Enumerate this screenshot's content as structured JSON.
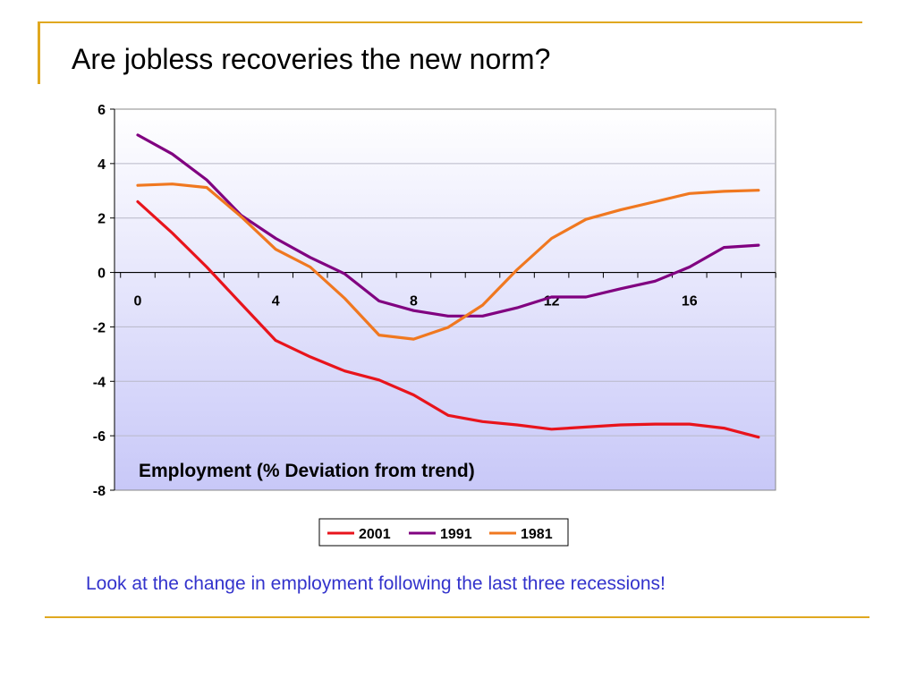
{
  "slide": {
    "title": "Are jobless recoveries the new norm?",
    "caption": "Look at the change in employment following the last three recessions!"
  },
  "colors": {
    "accent_rule": "#e0a820",
    "caption": "#3333cc",
    "plot_top": "#ffffff",
    "plot_bottom": "#c8c8f8"
  },
  "chart_data": {
    "type": "line",
    "title": "Employment (% Deviation from trend)",
    "xlabel": "",
    "ylabel": "",
    "xlim": [
      0,
      18
    ],
    "ylim": [
      -8,
      6
    ],
    "x_ticks": [
      0,
      4,
      8,
      12,
      16
    ],
    "y_ticks": [
      6,
      4,
      2,
      0,
      -2,
      -4,
      -6,
      -8
    ],
    "grid": true,
    "legend_position": "bottom-center",
    "x": [
      0,
      1,
      2,
      3,
      4,
      5,
      6,
      7,
      8,
      9,
      10,
      11,
      12,
      13,
      14,
      15,
      16,
      17,
      18
    ],
    "series": [
      {
        "name": "2001",
        "color": "#e8141c",
        "values": [
          2.6,
          1.45,
          0.2,
          -1.15,
          -2.5,
          -3.1,
          -3.62,
          -3.95,
          -4.5,
          -5.25,
          -5.48,
          -5.6,
          -5.76,
          -5.68,
          -5.6,
          -5.57,
          -5.57,
          -5.72,
          -6.05
        ]
      },
      {
        "name": "1991",
        "color": "#800080",
        "values": [
          5.05,
          4.35,
          3.4,
          2.1,
          1.25,
          0.55,
          -0.05,
          -1.05,
          -1.4,
          -1.6,
          -1.6,
          -1.3,
          -0.9,
          -0.9,
          -0.6,
          -0.32,
          0.2,
          0.92,
          1.0
        ]
      },
      {
        "name": "1981",
        "color": "#f07820",
        "values": [
          3.2,
          3.25,
          3.12,
          2.05,
          0.85,
          0.2,
          -0.95,
          -2.3,
          -2.45,
          -2.02,
          -1.2,
          0.1,
          1.25,
          1.95,
          2.3,
          2.6,
          2.9,
          2.98,
          3.02
        ]
      }
    ]
  }
}
